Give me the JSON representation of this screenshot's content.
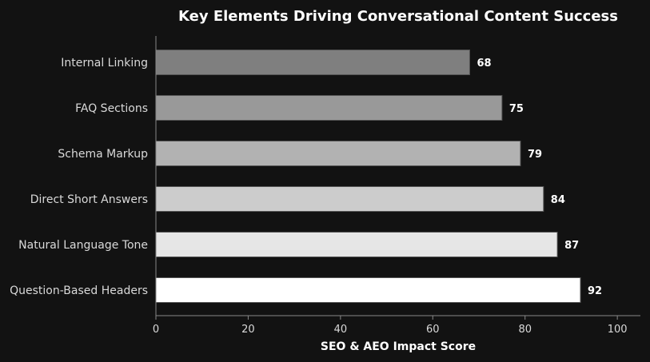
{
  "chart_data": {
    "type": "bar",
    "orientation": "horizontal",
    "title": "Key Elements Driving Conversational Content Success",
    "xlabel": "SEO & AEO Impact Score",
    "ylabel": "",
    "xlim": [
      0,
      105
    ],
    "xticks": [
      "0",
      "20",
      "40",
      "60",
      "80",
      "100"
    ],
    "grid": false,
    "categories": [
      "Internal Linking",
      "FAQ Sections",
      "Schema Markup",
      "Direct Short Answers",
      "Natural Language Tone",
      "Question-Based Headers"
    ],
    "values": [
      68,
      75,
      79,
      84,
      87,
      92
    ],
    "value_labels": [
      "68",
      "75",
      "79",
      "84",
      "87",
      "92"
    ],
    "bar_colors": [
      "#7f7f7f",
      "#999999",
      "#b2b2b2",
      "#cccccc",
      "#e6e6e6",
      "#ffffff"
    ],
    "background_color": "#121212"
  }
}
